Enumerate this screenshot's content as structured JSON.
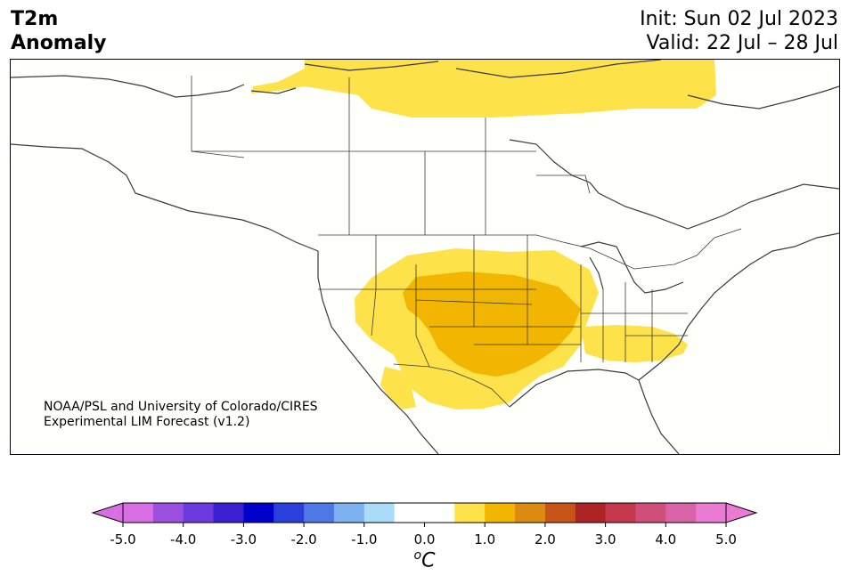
{
  "title": {
    "line1": "T2m",
    "line2": "Anomaly"
  },
  "subtitle": {
    "init": "Init: Sun 02 Jul 2023",
    "valid": "Valid: 22 Jul – 28 Jul"
  },
  "credit": {
    "line1": "NOAA/PSL and University of Colorado/CIRES",
    "line2": "Experimental LIM Forecast (v1.2)"
  },
  "colorbar": {
    "ticks": [
      "-5.0",
      "-4.0",
      "-3.0",
      "-2.0",
      "-1.0",
      "0.0",
      "1.0",
      "2.0",
      "3.0",
      "4.0",
      "5.0"
    ],
    "unit_base": "C",
    "unit_sup": "o",
    "colors": [
      "#d86ee3",
      "#9b50e0",
      "#6b3bdf",
      "#3b1fd0",
      "#0000cd",
      "#2a3fdc",
      "#4d78e6",
      "#7db2f1",
      "#aadcf8",
      "#ffffff",
      "#ffffff",
      "#fde24a",
      "#f2b500",
      "#dd8a10",
      "#c75518",
      "#ac2424",
      "#c3394b",
      "#cf4f7a",
      "#d964a7",
      "#e97bd3"
    ],
    "under_color": "#d86ee3",
    "over_color": "#e97bd3"
  }
}
